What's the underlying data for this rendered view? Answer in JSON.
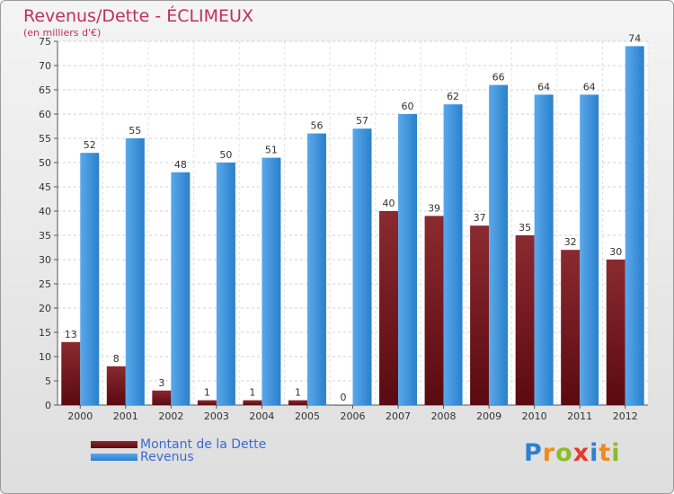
{
  "header": {
    "title": "Revenus/Dette - ÉCLIMEUX",
    "subtitle": "(en milliers d'€)"
  },
  "legend": {
    "debt_label": "Montant de la Dette",
    "revenue_label": "Revenus"
  },
  "logo": {
    "text": "Proxiti",
    "letters": [
      "P",
      "r",
      "o",
      "x",
      "i",
      "t",
      "i"
    ],
    "colors": [
      "#2f7fd1",
      "#f08a1c",
      "#8dbb2a",
      "#e23a2a",
      "#2f7fd1",
      "#f08a1c",
      "#8dbb2a"
    ]
  },
  "colors": {
    "debt": "#7a1a22",
    "revenue": "#3b93de",
    "title": "#c0305a",
    "legend_text": "#3a6ad0"
  },
  "chart_data": {
    "type": "bar",
    "title": "Revenus/Dette - ÉCLIMEUX",
    "ylabel": "(en milliers d'€)",
    "xlabel": "",
    "ylim": [
      0,
      75
    ],
    "yticks": [
      0,
      5,
      10,
      15,
      20,
      25,
      30,
      35,
      40,
      45,
      50,
      55,
      60,
      65,
      70,
      75
    ],
    "grid": true,
    "legend_position": "bottom-left",
    "categories": [
      "2000",
      "2001",
      "2002",
      "2003",
      "2004",
      "2005",
      "2006",
      "2007",
      "2008",
      "2009",
      "2010",
      "2011",
      "2012"
    ],
    "series": [
      {
        "name": "Montant de la Dette",
        "values": [
          13,
          8,
          3,
          1,
          1,
          1,
          0,
          40,
          39,
          37,
          35,
          32,
          30
        ]
      },
      {
        "name": "Revenus",
        "values": [
          52,
          55,
          48,
          50,
          51,
          56,
          57,
          60,
          62,
          66,
          64,
          64,
          74
        ]
      }
    ]
  }
}
